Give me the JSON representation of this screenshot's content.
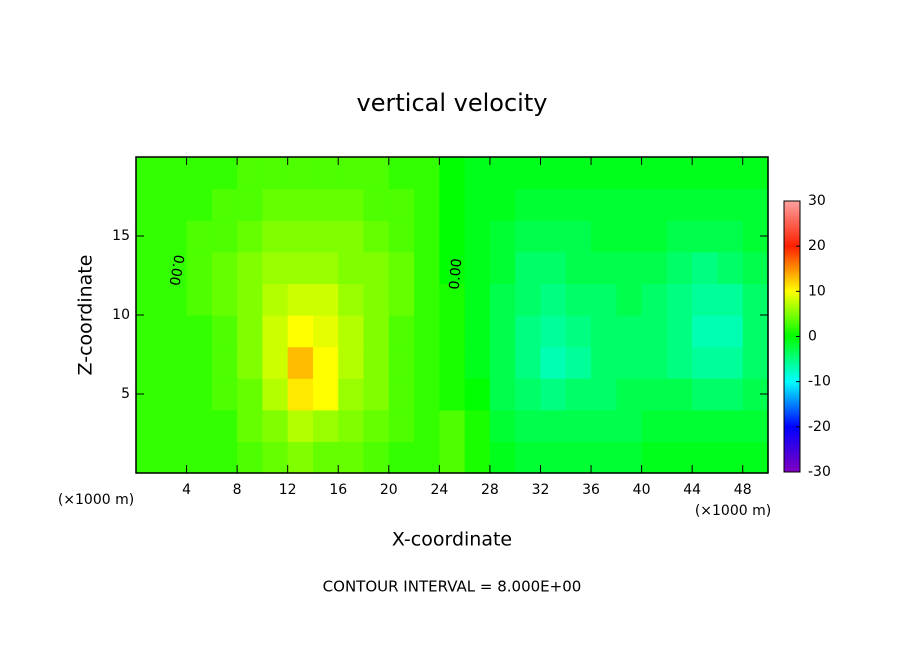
{
  "chart_data": {
    "type": "contour",
    "title": "vertical velocity",
    "x_label": "X-coordinate",
    "y_label": "Z-coordinate",
    "x_unit": "(×1000 m)",
    "y_unit": "(×1000 m)",
    "footer": "CONTOUR INTERVAL = 8.000E+00",
    "contour_labels": [
      "0.00",
      "0.00"
    ],
    "xlim": [
      0,
      50
    ],
    "ylim": [
      0,
      20
    ],
    "xticks": [
      4,
      8,
      12,
      16,
      20,
      24,
      28,
      32,
      36,
      40,
      44,
      48
    ],
    "yticks": [
      5,
      10,
      15
    ],
    "x": [
      1,
      3,
      5,
      7,
      9,
      11,
      13,
      15,
      17,
      19,
      21,
      23,
      25,
      27,
      29,
      31,
      33,
      35,
      37,
      39,
      41,
      43,
      45,
      47,
      49
    ],
    "y": [
      1,
      3,
      5,
      7,
      9,
      11,
      13,
      15,
      17,
      19
    ],
    "z": [
      [
        2,
        2,
        2,
        2,
        3,
        4,
        5,
        4,
        4,
        3,
        2,
        2,
        3,
        1,
        -1,
        -2,
        -2,
        -2,
        -2,
        -2,
        -1,
        -1,
        -1,
        -1,
        -1
      ],
      [
        2,
        2,
        2,
        2,
        4,
        5,
        7,
        6,
        5,
        4,
        3,
        2,
        3,
        1,
        -2,
        -3,
        -3,
        -3,
        -3,
        -3,
        -2,
        -2,
        -2,
        -2,
        -2
      ],
      [
        2,
        2,
        2,
        3,
        4,
        7,
        11,
        10,
        6,
        5,
        3,
        2,
        1,
        0,
        -3,
        -4,
        -5,
        -4,
        -4,
        -3,
        -3,
        -3,
        -4,
        -4,
        -3
      ],
      [
        2,
        2,
        2,
        3,
        5,
        8,
        13,
        10,
        7,
        5,
        3,
        2,
        1,
        -1,
        -3,
        -5,
        -7,
        -6,
        -4,
        -4,
        -4,
        -5,
        -6,
        -6,
        -4
      ],
      [
        2,
        2,
        2,
        3,
        5,
        8,
        10,
        9,
        7,
        5,
        3,
        2,
        1,
        -1,
        -3,
        -5,
        -6,
        -5,
        -4,
        -4,
        -4,
        -5,
        -7,
        -7,
        -4
      ],
      [
        2,
        2,
        3,
        4,
        5,
        7,
        8,
        8,
        6,
        5,
        4,
        2,
        1,
        -1,
        -3,
        -4,
        -5,
        -4,
        -4,
        -3,
        -4,
        -5,
        -6,
        -6,
        -4
      ],
      [
        2,
        2,
        3,
        4,
        5,
        6,
        6,
        6,
        5,
        5,
        4,
        2,
        0,
        -1,
        -2,
        -4,
        -4,
        -3,
        -3,
        -3,
        -3,
        -4,
        -5,
        -4,
        -3
      ],
      [
        2,
        2,
        3,
        3,
        4,
        5,
        5,
        5,
        5,
        4,
        3,
        2,
        0,
        -1,
        -2,
        -3,
        -3,
        -3,
        -2,
        -2,
        -2,
        -3,
        -3,
        -3,
        -2
      ],
      [
        2,
        2,
        2,
        3,
        3,
        4,
        4,
        4,
        4,
        3,
        3,
        2,
        0,
        -1,
        -1,
        -2,
        -2,
        -2,
        -2,
        -2,
        -2,
        -2,
        -2,
        -2,
        -2
      ],
      [
        2,
        2,
        2,
        2,
        3,
        3,
        3,
        3,
        3,
        3,
        2,
        2,
        0,
        -1,
        -1,
        -1,
        -1,
        -1,
        -1,
        -1,
        -1,
        -1,
        -1,
        -1,
        -1
      ]
    ],
    "colorbar": {
      "ticks": [
        -30,
        -20,
        -10,
        0,
        10,
        20,
        30
      ],
      "colors": [
        "#8000c0",
        "#0000ff",
        "#00ffff",
        "#00ff00",
        "#ffff00",
        "#ff2000",
        "#ffa0a0"
      ]
    }
  }
}
